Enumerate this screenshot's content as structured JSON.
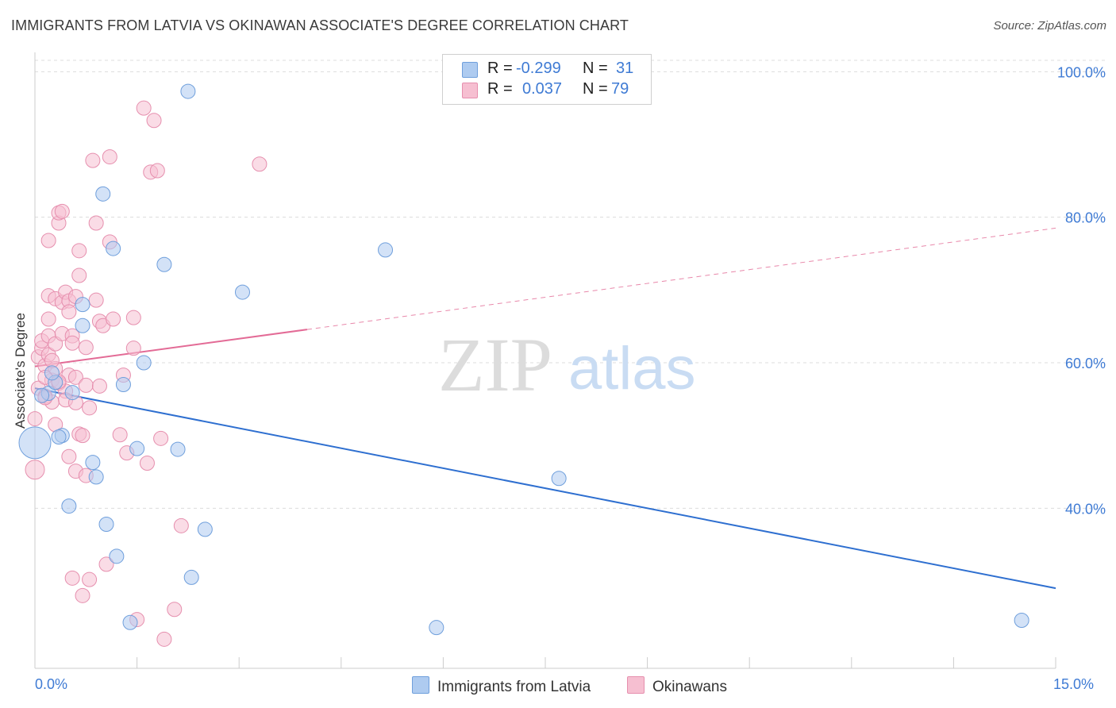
{
  "title": "IMMIGRANTS FROM LATVIA VS OKINAWAN ASSOCIATE'S DEGREE CORRELATION CHART",
  "source": "Source: ZipAtlas.com",
  "watermark": {
    "zip": "ZIP",
    "atlas": "atlas"
  },
  "legend": {
    "rows": [
      {
        "r_label": "R =",
        "r_value": "-0.299",
        "n_label": "N =",
        "n_value": "31"
      },
      {
        "r_label": "R =",
        "r_value": "0.037",
        "n_label": "N =",
        "n_value": "79"
      }
    ]
  },
  "colors": {
    "blue_fill": "#aecbf0",
    "blue_stroke": "#6f9fdc",
    "blue_line": "#2e6fd0",
    "pink_fill": "#f6bfd1",
    "pink_stroke": "#e68fae",
    "pink_line": "#e36b96",
    "tick_text": "#3f7bd4",
    "grid": "#dcdcdc"
  },
  "chart_data": {
    "type": "scatter",
    "title": "IMMIGRANTS FROM LATVIA VS OKINAWAN ASSOCIATE'S DEGREE CORRELATION CHART",
    "xlabel": "",
    "ylabel": "Associate's Degree",
    "xlim": [
      0,
      15
    ],
    "ylim": [
      18,
      102
    ],
    "x_tick_labels": [
      "0.0%",
      "15.0%"
    ],
    "y_ticks": [
      40,
      60,
      80,
      100
    ],
    "y_tick_labels": [
      "40.0%",
      "60.0%",
      "80.0%",
      "100.0%"
    ],
    "legend_position": "top-center",
    "series": [
      {
        "name": "Immigrants from Latvia",
        "color": "blue",
        "r": -0.299,
        "n": 31,
        "trend": {
          "x0": 0,
          "y0": 56.5,
          "x1": 15,
          "y1": 29.0,
          "dashed_from": null
        },
        "points": [
          [
            0.0,
            49.0,
            20
          ],
          [
            0.2,
            55.8,
            9
          ],
          [
            0.3,
            57.3,
            9
          ],
          [
            0.4,
            50.0,
            9
          ],
          [
            0.5,
            40.3,
            9
          ],
          [
            0.7,
            68.0,
            9
          ],
          [
            0.7,
            65.1,
            9
          ],
          [
            0.85,
            46.3,
            9
          ],
          [
            0.9,
            44.3,
            9
          ],
          [
            1.0,
            83.2,
            9
          ],
          [
            1.05,
            37.8,
            9
          ],
          [
            1.15,
            75.7,
            9
          ],
          [
            1.2,
            33.4,
            9
          ],
          [
            1.3,
            57.0,
            9
          ],
          [
            1.4,
            24.3,
            9
          ],
          [
            1.5,
            48.2,
            9
          ],
          [
            1.6,
            60.0,
            9
          ],
          [
            1.9,
            73.5,
            9
          ],
          [
            2.1,
            48.1,
            9
          ],
          [
            2.25,
            97.3,
            9
          ],
          [
            2.3,
            30.5,
            9
          ],
          [
            2.5,
            37.1,
            9
          ],
          [
            3.05,
            69.7,
            9
          ],
          [
            5.15,
            75.5,
            9
          ],
          [
            5.9,
            23.6,
            9
          ],
          [
            7.7,
            44.1,
            9
          ],
          [
            14.5,
            24.6,
            9
          ],
          [
            0.1,
            55.5,
            9
          ],
          [
            0.35,
            49.8,
            9
          ],
          [
            0.25,
            58.6,
            9
          ],
          [
            0.55,
            55.9,
            9
          ]
        ]
      },
      {
        "name": "Okinawans",
        "color": "pink",
        "r": 0.037,
        "n": 79,
        "trend": {
          "x0": 0,
          "y0": 59.5,
          "x1": 15,
          "y1": 78.5,
          "dashed_from": 4.0
        },
        "points": [
          [
            0.0,
            45.3,
            12
          ],
          [
            0.0,
            52.3,
            9
          ],
          [
            0.05,
            60.8,
            9
          ],
          [
            0.05,
            56.5,
            9
          ],
          [
            0.1,
            62.0,
            9
          ],
          [
            0.1,
            63.0,
            9
          ],
          [
            0.15,
            55.4,
            9
          ],
          [
            0.15,
            59.6,
            9
          ],
          [
            0.2,
            69.2,
            9
          ],
          [
            0.2,
            63.7,
            9
          ],
          [
            0.2,
            61.1,
            9
          ],
          [
            0.2,
            76.8,
            9
          ],
          [
            0.25,
            57.6,
            9
          ],
          [
            0.25,
            54.6,
            9
          ],
          [
            0.3,
            68.8,
            9
          ],
          [
            0.3,
            62.6,
            9
          ],
          [
            0.3,
            59.2,
            9
          ],
          [
            0.3,
            51.5,
            9
          ],
          [
            0.35,
            57.2,
            9
          ],
          [
            0.35,
            79.2,
            9
          ],
          [
            0.35,
            80.6,
            9
          ],
          [
            0.4,
            64.0,
            9
          ],
          [
            0.4,
            68.3,
            9
          ],
          [
            0.4,
            80.8,
            9
          ],
          [
            0.45,
            69.7,
            9
          ],
          [
            0.45,
            56.1,
            9
          ],
          [
            0.5,
            58.3,
            9
          ],
          [
            0.5,
            47.1,
            9
          ],
          [
            0.5,
            68.5,
            9
          ],
          [
            0.55,
            63.7,
            9
          ],
          [
            0.55,
            30.4,
            9
          ],
          [
            0.6,
            69.1,
            9
          ],
          [
            0.6,
            58.0,
            9
          ],
          [
            0.6,
            45.1,
            9
          ],
          [
            0.65,
            75.4,
            9
          ],
          [
            0.65,
            72.0,
            9
          ],
          [
            0.65,
            50.2,
            9
          ],
          [
            0.7,
            28.0,
            9
          ],
          [
            0.75,
            62.1,
            9
          ],
          [
            0.75,
            56.9,
            9
          ],
          [
            0.75,
            44.5,
            9
          ],
          [
            0.8,
            53.8,
            9
          ],
          [
            0.8,
            30.2,
            9
          ],
          [
            0.85,
            87.8,
            9
          ],
          [
            0.9,
            79.2,
            9
          ],
          [
            0.9,
            68.6,
            9
          ],
          [
            0.95,
            65.7,
            9
          ],
          [
            0.95,
            56.8,
            9
          ],
          [
            1.0,
            65.1,
            9
          ],
          [
            1.05,
            32.3,
            9
          ],
          [
            1.1,
            88.3,
            9
          ],
          [
            1.1,
            76.6,
            9
          ],
          [
            1.15,
            66.0,
            9
          ],
          [
            1.25,
            50.1,
            9
          ],
          [
            1.3,
            58.3,
            9
          ],
          [
            1.35,
            47.6,
            9
          ],
          [
            1.45,
            66.2,
            9
          ],
          [
            1.45,
            62.0,
            9
          ],
          [
            1.5,
            24.7,
            9
          ],
          [
            1.6,
            95.0,
            9
          ],
          [
            1.65,
            46.2,
            9
          ],
          [
            1.7,
            86.2,
            9
          ],
          [
            1.75,
            93.3,
            9
          ],
          [
            1.8,
            86.4,
            9
          ],
          [
            1.85,
            49.6,
            9
          ],
          [
            1.9,
            22.0,
            9
          ],
          [
            2.05,
            26.1,
            9
          ],
          [
            2.15,
            37.6,
            9
          ],
          [
            3.3,
            87.3,
            9
          ],
          [
            0.15,
            55.2,
            9
          ],
          [
            0.25,
            60.3,
            9
          ],
          [
            0.45,
            54.9,
            9
          ],
          [
            0.5,
            67.0,
            9
          ],
          [
            0.6,
            54.5,
            9
          ],
          [
            0.7,
            50.0,
            9
          ],
          [
            0.35,
            57.4,
            9
          ],
          [
            0.2,
            66.0,
            9
          ],
          [
            0.15,
            58.0,
            9
          ],
          [
            0.55,
            62.7,
            9
          ]
        ]
      }
    ]
  }
}
